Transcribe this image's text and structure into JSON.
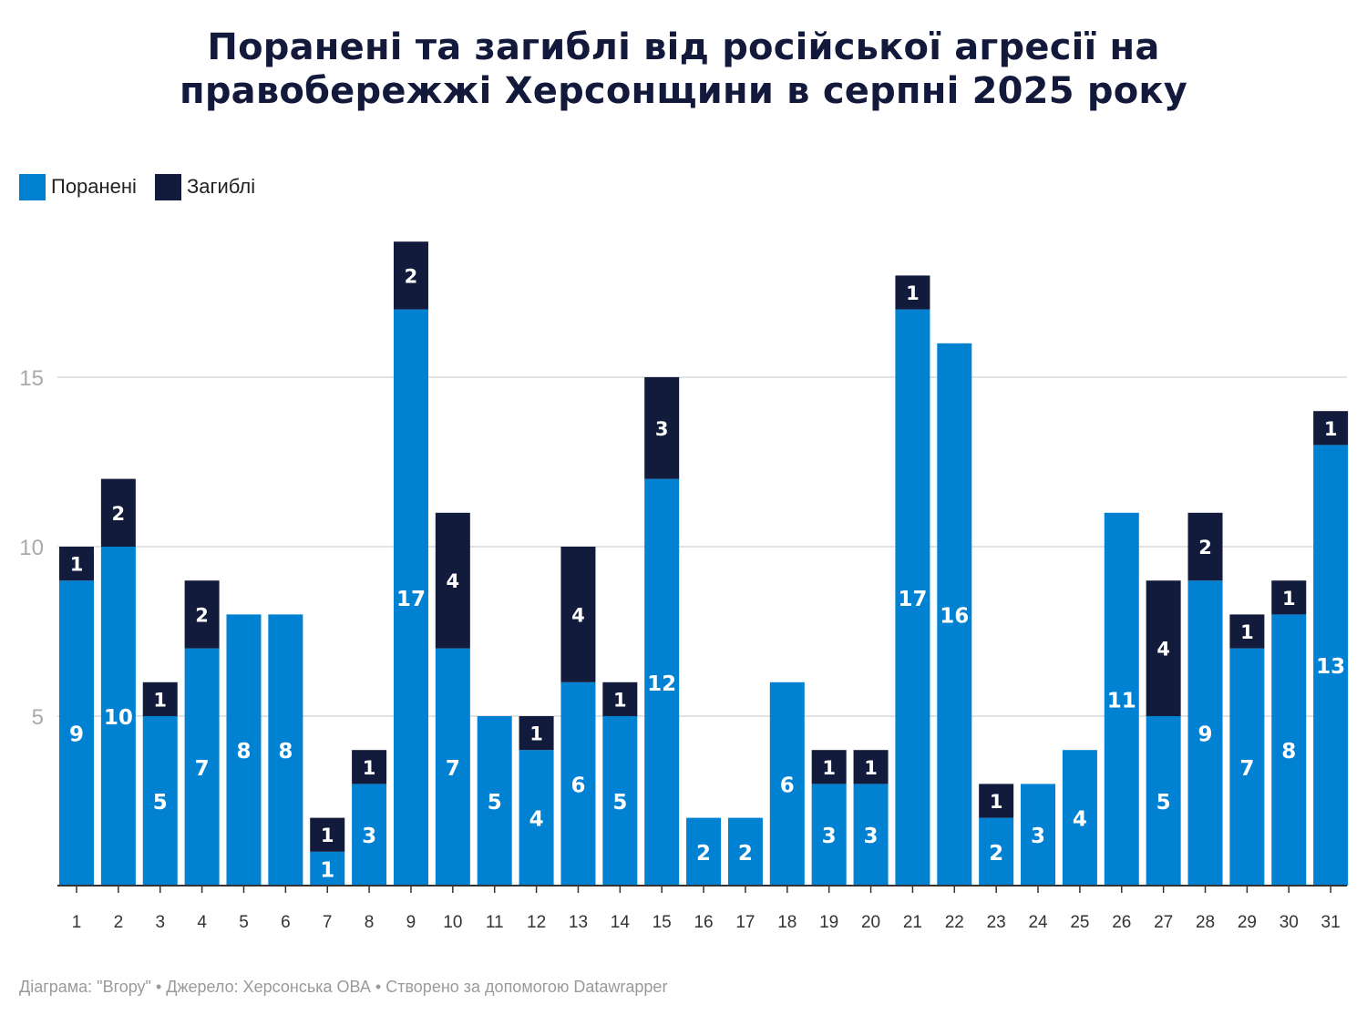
{
  "title_line1": "Поранені та загиблі від російської агресії на",
  "title_line2": "правобережжі Херсонщини в серпні 2025 року",
  "footer": "Діаграма: \"Вгору\" • Джерело: Херсонська ОВА • Створено за допомогою Datawrapper",
  "chart_data": {
    "type": "bar",
    "stacked": true,
    "categories": [
      "1",
      "2",
      "3",
      "4",
      "5",
      "6",
      "7",
      "8",
      "9",
      "10",
      "11",
      "12",
      "13",
      "14",
      "15",
      "16",
      "17",
      "18",
      "19",
      "20",
      "21",
      "22",
      "23",
      "24",
      "25",
      "26",
      "27",
      "28",
      "29",
      "30",
      "31"
    ],
    "series": [
      {
        "name": "Поранені",
        "color": "#0181d2",
        "values": [
          9,
          10,
          5,
          7,
          8,
          8,
          1,
          3,
          17,
          7,
          5,
          4,
          6,
          5,
          12,
          2,
          2,
          6,
          3,
          3,
          17,
          16,
          2,
          3,
          4,
          11,
          5,
          9,
          7,
          8,
          13
        ]
      },
      {
        "name": "Загиблі",
        "color": "#121b3b",
        "values": [
          1,
          2,
          1,
          2,
          0,
          0,
          1,
          1,
          2,
          4,
          0,
          1,
          4,
          1,
          3,
          0,
          0,
          0,
          1,
          1,
          1,
          0,
          1,
          0,
          0,
          0,
          4,
          2,
          1,
          1,
          1
        ]
      }
    ],
    "y_ticks": [
      "5",
      "10",
      "15"
    ],
    "ylim": [
      0,
      20
    ],
    "grid": true,
    "legend_position": "top-left"
  }
}
